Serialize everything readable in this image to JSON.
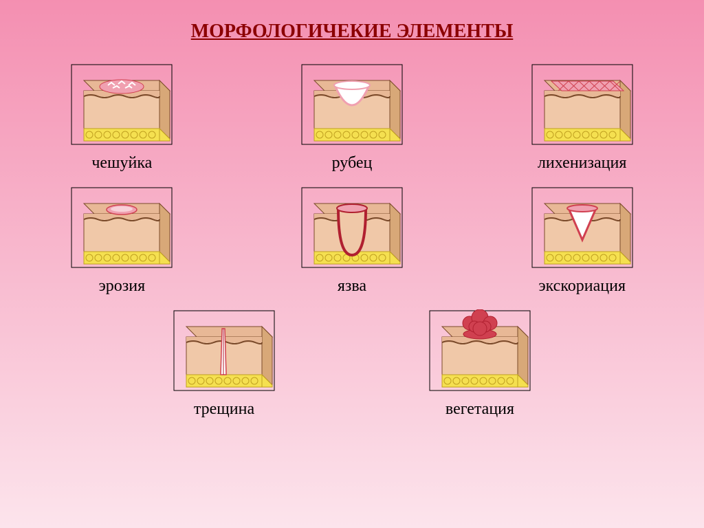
{
  "title": "МОРФОЛОГИЧЕКИЕ ЭЛЕМЕНТЫ",
  "title_fontsize": 28,
  "title_color": "#8b0000",
  "label_fontsize": 24,
  "label_color": "#000000",
  "background_gradient": {
    "from": "#f48fb1",
    "to": "#fce4ec"
  },
  "skin_colors": {
    "epidermis": "#e8b896",
    "epidermis_line": "#7a4a2a",
    "dermis": "#f0c8a8",
    "dermis_side": "#d8a878",
    "fat": "#f5e050",
    "fat_outline": "#c0a020",
    "lesion_pink": "#f0a0b0",
    "lesion_red": "#d04050",
    "lesion_dark": "#b02030",
    "white": "#ffffff",
    "border": "#000000"
  },
  "items": [
    {
      "key": "scale",
      "label": "чешуйка",
      "type": "scale"
    },
    {
      "key": "scar",
      "label": "рубец",
      "type": "scar"
    },
    {
      "key": "lichen",
      "label": "лихенизация",
      "type": "lichen"
    },
    {
      "key": "erosion",
      "label": "эрозия",
      "type": "erosion"
    },
    {
      "key": "ulcer",
      "label": "язва",
      "type": "ulcer"
    },
    {
      "key": "excoriation",
      "label": "экскориация",
      "type": "excoriation"
    },
    {
      "key": "fissure",
      "label": "трещина",
      "type": "fissure"
    },
    {
      "key": "vegetation",
      "label": "вегетация",
      "type": "vegetation"
    }
  ]
}
